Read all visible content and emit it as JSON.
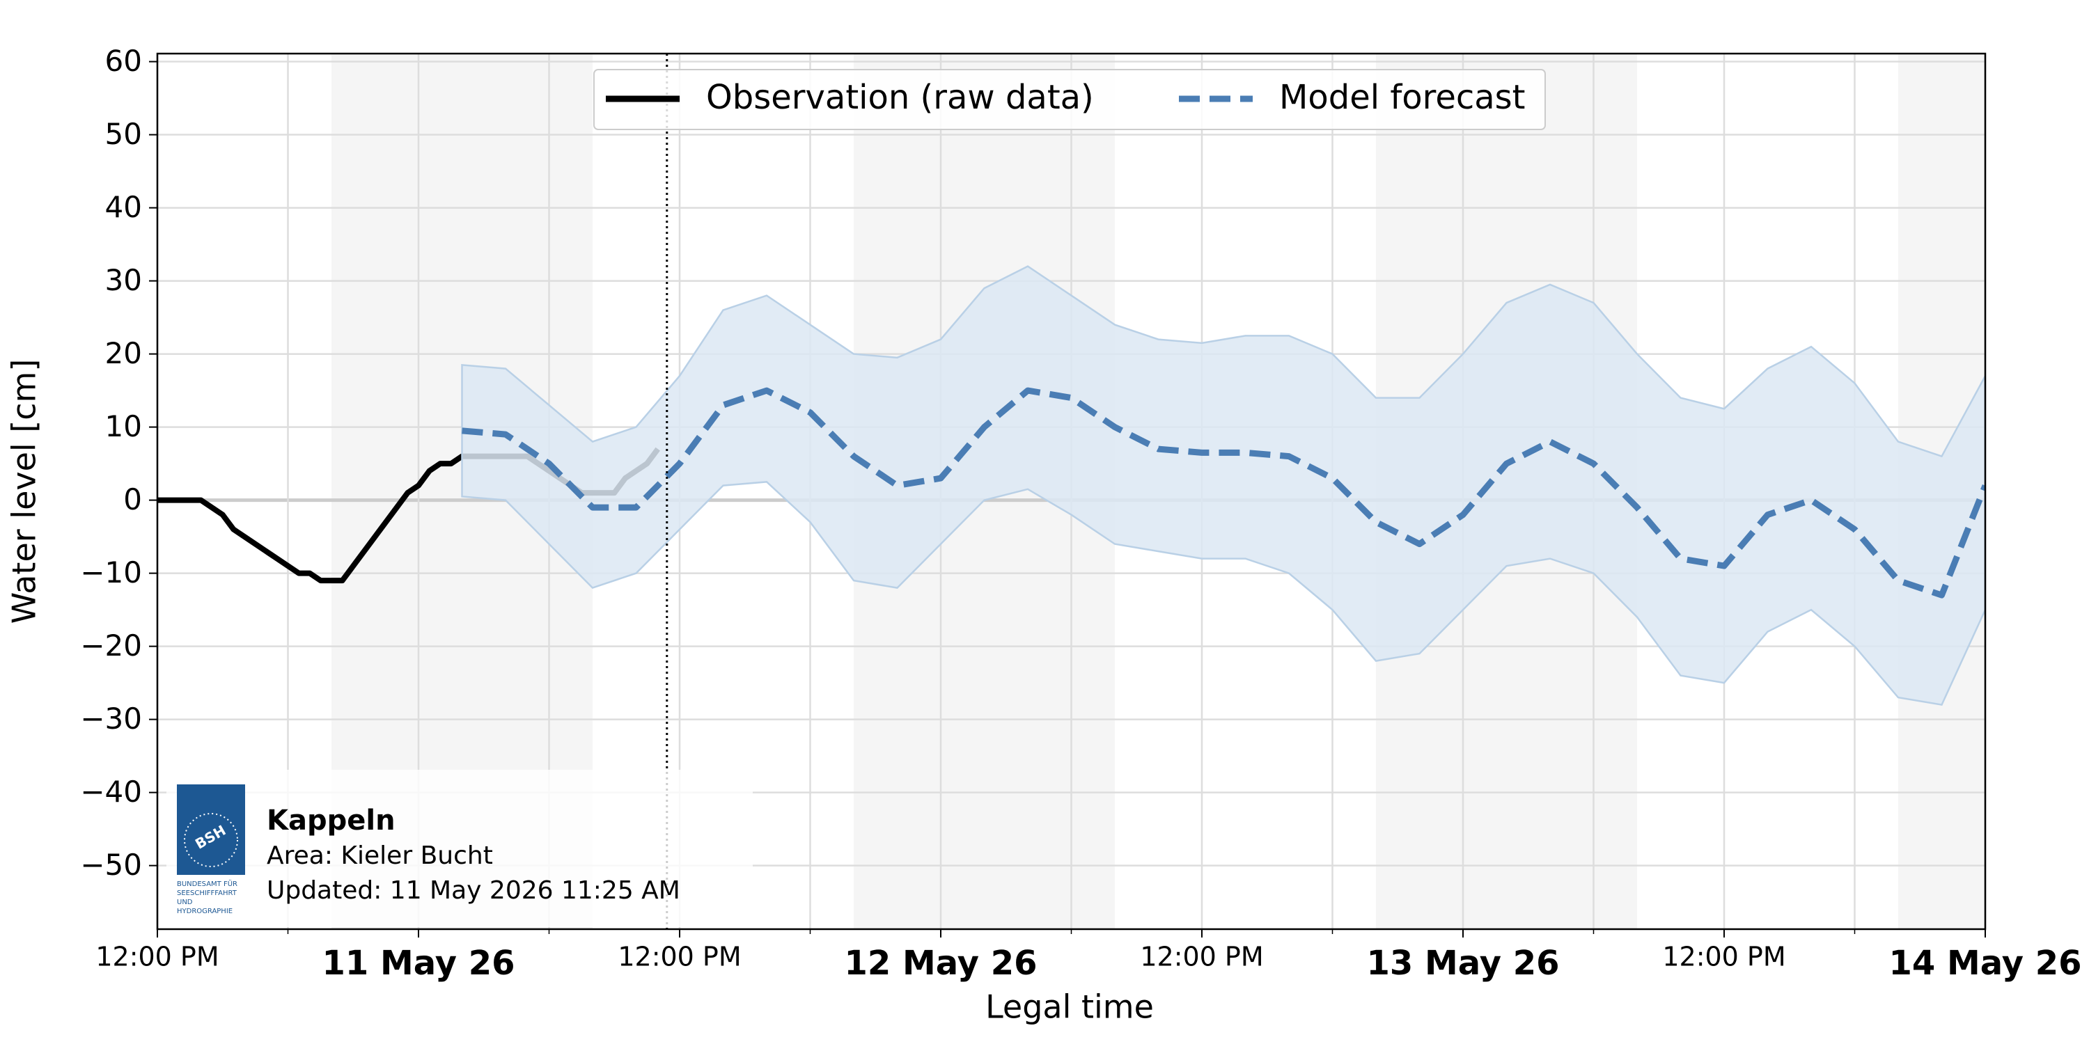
{
  "chart_data": {
    "type": "line",
    "y_label": "Water level [cm]",
    "x_label": "Legal time",
    "xlim": [
      "2026-05-10 12:00",
      "2026-05-14 00:00"
    ],
    "xticks": [
      {
        "value": "2026-05-10 12:00",
        "label": "12:00 PM"
      },
      {
        "value": "2026-05-11 00:00",
        "label": "11 May 26"
      },
      {
        "value": "2026-05-11 12:00",
        "label": "12:00 PM"
      },
      {
        "value": "2026-05-12 00:00",
        "label": "12 May 26"
      },
      {
        "value": "2026-05-12 12:00",
        "label": "12:00 PM"
      },
      {
        "value": "2026-05-13 00:00",
        "label": "13 May 26"
      },
      {
        "value": "2026-05-13 12:00",
        "label": "12:00 PM"
      },
      {
        "value": "2026-05-14 00:00",
        "label": "14 May 26"
      }
    ],
    "xminorticks": [
      "2026-05-10 18:00",
      "2026-05-11 06:00",
      "2026-05-11 18:00",
      "2026-05-12 06:00",
      "2026-05-12 18:00",
      "2026-05-13 06:00",
      "2026-05-13 18:00"
    ],
    "ylim": [
      -58.7,
      61.1
    ],
    "yticks": [
      {
        "value": -50,
        "label": "−50"
      },
      {
        "value": -40,
        "label": "−40"
      },
      {
        "value": -30,
        "label": "−30"
      },
      {
        "value": -20,
        "label": "−20"
      },
      {
        "value": -10,
        "label": "−10"
      },
      0,
      10,
      20,
      30,
      40,
      50,
      60
    ],
    "grid": true,
    "zero_line": true,
    "night_shading": [
      [
        "2026-05-10 20:00",
        "2026-05-11 08:00"
      ],
      [
        "2026-05-11 20:00",
        "2026-05-12 08:00"
      ],
      [
        "2026-05-12 20:00",
        "2026-05-13 08:00"
      ],
      [
        "2026-05-13 20:00",
        "2026-05-14 08:00"
      ]
    ],
    "now_line": "2026-05-11 11:25",
    "legend": "upper center",
    "series": [
      {
        "name": "Observation (raw data)",
        "color": "#000000",
        "style": "solid",
        "x": [
          "2026-05-10 12:00",
          "2026-05-10 12:30",
          "2026-05-10 13:00",
          "2026-05-10 13:30",
          "2026-05-10 14:00",
          "2026-05-10 14:30",
          "2026-05-10 15:00",
          "2026-05-10 15:30",
          "2026-05-10 16:00",
          "2026-05-10 16:30",
          "2026-05-10 17:00",
          "2026-05-10 17:30",
          "2026-05-10 18:00",
          "2026-05-10 18:30",
          "2026-05-10 19:00",
          "2026-05-10 19:30",
          "2026-05-10 20:00",
          "2026-05-10 20:30",
          "2026-05-10 21:00",
          "2026-05-10 21:30",
          "2026-05-10 22:00",
          "2026-05-10 22:30",
          "2026-05-10 23:00",
          "2026-05-10 23:30",
          "2026-05-11 00:00",
          "2026-05-11 00:30",
          "2026-05-11 01:00",
          "2026-05-11 01:30",
          "2026-05-11 02:00",
          "2026-05-11 02:30",
          "2026-05-11 03:00",
          "2026-05-11 03:30",
          "2026-05-11 04:00",
          "2026-05-11 04:30",
          "2026-05-11 05:00",
          "2026-05-11 05:30",
          "2026-05-11 06:00",
          "2026-05-11 06:30",
          "2026-05-11 07:00",
          "2026-05-11 07:30",
          "2026-05-11 08:00",
          "2026-05-11 08:30",
          "2026-05-11 09:00",
          "2026-05-11 09:30",
          "2026-05-11 10:00",
          "2026-05-11 10:30",
          "2026-05-11 11:00"
        ],
        "values": [
          0,
          0,
          0,
          0,
          0,
          -1,
          -2,
          -4,
          -5,
          -6,
          -7,
          -8,
          -9,
          -10,
          -10,
          -11,
          -11,
          -11,
          -9,
          -7,
          -5,
          -3,
          -1,
          1,
          2,
          4,
          5,
          5,
          6,
          6,
          6,
          6,
          6,
          6,
          6,
          5,
          4,
          3,
          2,
          1,
          1,
          1,
          1,
          3,
          4,
          5,
          7
        ]
      },
      {
        "name": "Model forecast",
        "color": "#4a7db4",
        "style": "dashed",
        "band_color": "#dce8f3",
        "x": [
          "2026-05-11 02:00",
          "2026-05-11 04:00",
          "2026-05-11 06:00",
          "2026-05-11 08:00",
          "2026-05-11 10:00",
          "2026-05-11 12:00",
          "2026-05-11 14:00",
          "2026-05-11 16:00",
          "2026-05-11 18:00",
          "2026-05-11 20:00",
          "2026-05-11 22:00",
          "2026-05-12 00:00",
          "2026-05-12 02:00",
          "2026-05-12 04:00",
          "2026-05-12 06:00",
          "2026-05-12 08:00",
          "2026-05-12 10:00",
          "2026-05-12 12:00",
          "2026-05-12 14:00",
          "2026-05-12 16:00",
          "2026-05-12 18:00",
          "2026-05-12 20:00",
          "2026-05-12 22:00",
          "2026-05-13 00:00",
          "2026-05-13 02:00",
          "2026-05-13 04:00",
          "2026-05-13 06:00",
          "2026-05-13 08:00",
          "2026-05-13 10:00",
          "2026-05-13 12:00",
          "2026-05-13 14:00",
          "2026-05-13 16:00",
          "2026-05-13 18:00",
          "2026-05-13 20:00",
          "2026-05-13 22:00",
          "2026-05-14 00:00"
        ],
        "values": [
          9.5,
          9,
          5,
          -1,
          -1,
          5,
          13,
          15,
          12,
          6,
          2,
          3,
          10,
          15,
          14,
          10,
          7,
          6.5,
          6.5,
          6,
          3,
          -3,
          -6,
          -2,
          5,
          8,
          5,
          -1,
          -8,
          -9,
          -2,
          0,
          -4,
          -11,
          -13,
          2
        ],
        "upper": [
          18.5,
          18,
          13,
          8,
          10,
          17,
          26,
          28,
          24,
          20,
          19.5,
          22,
          29,
          32,
          28,
          24,
          22,
          21.5,
          22.5,
          22.5,
          20,
          14,
          14,
          20,
          27,
          29.5,
          27,
          20,
          14,
          12.5,
          18,
          21,
          16,
          8,
          6,
          17
        ],
        "lower": [
          0.5,
          0,
          -6,
          -12,
          -10,
          -4,
          2,
          2.5,
          -3,
          -11,
          -12,
          -6,
          0,
          1.5,
          -2,
          -6,
          -7,
          -8,
          -8,
          -10,
          -15,
          -22,
          -21,
          -15,
          -9,
          -8,
          -10,
          -16,
          -24,
          -25,
          -18,
          -15,
          -20,
          -27,
          -28,
          -15
        ]
      }
    ],
    "info": {
      "station": "Kappeln",
      "area": "Area: Kieler Bucht",
      "updated": "Updated: 11 May 2026 11:25 AM",
      "logo_text": "BSH",
      "logo_caption": [
        "BUNDESAMT FÜR",
        "SEESCHIFFFAHRT",
        "UND",
        "HYDROGRAPHIE"
      ]
    }
  }
}
